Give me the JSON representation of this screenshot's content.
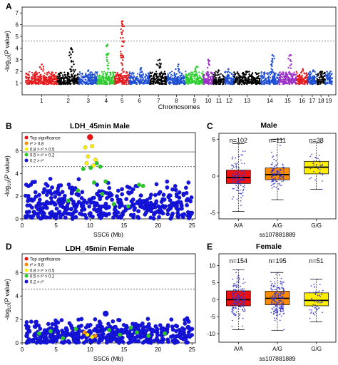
{
  "panels": {
    "A": "A",
    "B": "B",
    "C": "C",
    "D": "D",
    "E": "E"
  },
  "chart_data": [
    {
      "id": "A",
      "type": "scatter",
      "subtype": "manhattan",
      "title": "",
      "xlabel": "Chromosomes",
      "ylabel": "-log10(P value)",
      "ylim": [
        0,
        7.5
      ],
      "yticks": [
        1,
        2,
        3,
        4,
        5,
        6,
        7
      ],
      "chromosomes": [
        "1",
        "2",
        "3",
        "4",
        "5",
        "6",
        "7",
        "8",
        "9",
        "10",
        "11",
        "12",
        "13",
        "14",
        "15",
        "16",
        "17",
        "18",
        "19"
      ],
      "chromosome_labels": [
        "1",
        "2",
        "3",
        "4",
        "5",
        "6",
        "7",
        "8",
        "9",
        "10",
        "11",
        "12",
        "13",
        "14",
        "15",
        "16",
        "17",
        "18",
        "19"
      ],
      "chromosome_colors": [
        "#e41a1c",
        "#000000",
        "#1f4fd1",
        "#2ecc2e",
        "#e41a1c",
        "#1f4fd1",
        "#000000",
        "#1f4fd1",
        "#2ecc2e",
        "#9b30c8",
        "#000000",
        "#1f4fd1",
        "#000000",
        "#1f4fd1",
        "#9b30c8",
        "#e41a1c",
        "#1f4fd1",
        "#000000",
        "#1f4fd1"
      ],
      "chromosome_peaks": [
        2.6,
        4.0,
        2.1,
        4.3,
        6.3,
        2.3,
        3.0,
        2.6,
        2.4,
        3.0,
        2.1,
        2.2,
        2.0,
        3.4,
        3.4,
        2.2,
        2.1,
        2.0,
        1.8
      ],
      "thresholds": [
        {
          "value": 5.9,
          "style": "solid"
        },
        {
          "value": 4.6,
          "style": "dashed"
        }
      ]
    },
    {
      "id": "B",
      "type": "scatter",
      "subtype": "regional",
      "title": "LDH_45min Male",
      "xlabel": "SSC6 (Mb)",
      "ylabel": "-log10(P value)",
      "xlim": [
        0,
        25.5
      ],
      "ylim": [
        0,
        7.6
      ],
      "xticks": [
        0,
        5,
        10,
        15,
        20,
        25
      ],
      "yticks": [
        0,
        2,
        4,
        6
      ],
      "thresholds": [
        {
          "value": 5.9,
          "style": "solid"
        },
        {
          "value": 4.6,
          "style": "dashed"
        }
      ],
      "legend": {
        "placement": "top-left",
        "entries": [
          {
            "label": "Top significance",
            "color": "#ee1111"
          },
          {
            "label": "r² > 0.8",
            "color": "#ff8c00"
          },
          {
            "label": "0.8 > r² > 0.5",
            "color": "#ffee00"
          },
          {
            "label": "0.5 > r² > 0.2",
            "color": "#22cc22"
          },
          {
            "label": "0.2 > r²",
            "color": "#1515dd"
          }
        ]
      },
      "top_snp": {
        "x": 10.0,
        "y": 7.2
      },
      "highlighted": [
        {
          "x": 9.3,
          "y": 6.3,
          "r2": "0.8-0.5"
        },
        {
          "x": 10.3,
          "y": 6.4,
          "r2": "0.8-0.5"
        },
        {
          "x": 9.7,
          "y": 5.5,
          "r2": "0.8-0.5"
        },
        {
          "x": 10.8,
          "y": 5.2,
          "r2": "0.8-0.5"
        },
        {
          "x": 9.5,
          "y": 4.9,
          "r2": "0.8-0.5"
        },
        {
          "x": 10.5,
          "y": 4.7,
          "r2": "0.8-0.5"
        },
        {
          "x": 11.0,
          "y": 4.9,
          "r2": "0.5-0.2"
        },
        {
          "x": 11.5,
          "y": 4.6,
          "r2": "0.5-0.2"
        },
        {
          "x": 10.1,
          "y": 4.5,
          "r2": "0.5-0.2"
        },
        {
          "x": 9.0,
          "y": 4.4,
          "r2": "0.5-0.2"
        },
        {
          "x": 10.6,
          "y": 3.2,
          "r2": "0.5-0.2"
        },
        {
          "x": 8.2,
          "y": 2.5,
          "r2": "0.5-0.2"
        },
        {
          "x": 11.8,
          "y": 2.2,
          "r2": "0.5-0.2"
        },
        {
          "x": 13.5,
          "y": 1.3,
          "r2": "0.5-0.2"
        },
        {
          "x": 17.2,
          "y": 3.0,
          "r2": "0.5-0.2"
        },
        {
          "x": 17.8,
          "y": 2.9,
          "r2": "0.5-0.2"
        },
        {
          "x": 6.8,
          "y": 1.6,
          "r2": "0.5-0.2"
        },
        {
          "x": 12.3,
          "y": 3.3,
          "r2": "0.5-0.2"
        },
        {
          "x": 15.6,
          "y": 1.1,
          "r2": "0.5-0.2"
        }
      ],
      "background_max": 3.6
    },
    {
      "id": "C",
      "type": "box",
      "title": "Male",
      "xlabel": "ss107881889",
      "ylabel": "",
      "ylim": [
        -5.8,
        5.8
      ],
      "yticks": [
        -5,
        0,
        5
      ],
      "groups": [
        {
          "genotype": "A/A",
          "n_label": "n=102",
          "n": 102,
          "color": "#ee1111",
          "q1": -1.0,
          "median": -0.2,
          "q3": 0.8,
          "whisker_low": -4.8,
          "whisker_high": 4.4
        },
        {
          "genotype": "A/G",
          "n_label": "n=111",
          "n": 111,
          "color": "#ff8c00",
          "q1": -0.5,
          "median": 0.2,
          "q3": 1.1,
          "whisker_low": -3.2,
          "whisker_high": 5.0
        },
        {
          "genotype": "G/G",
          "n_label": "n=38",
          "n": 38,
          "color": "#ffee00",
          "q1": 0.3,
          "median": 1.2,
          "q3": 2.0,
          "whisker_low": -1.8,
          "whisker_high": 4.5
        }
      ]
    },
    {
      "id": "D",
      "type": "scatter",
      "subtype": "regional",
      "title": "LDH_45min Female",
      "xlabel": "SSC6 (Mb)",
      "ylabel": "-log10(P value)",
      "xlim": [
        0,
        25.5
      ],
      "ylim": [
        0,
        7.6
      ],
      "xticks": [
        0,
        5,
        10,
        15,
        20,
        25
      ],
      "yticks": [
        0,
        2,
        4,
        6
      ],
      "thresholds": [
        {
          "value": 5.9,
          "style": "solid"
        },
        {
          "value": 4.6,
          "style": "dashed"
        }
      ],
      "legend": {
        "placement": "top-left",
        "entries": [
          {
            "label": "Top significance",
            "color": "#ee1111"
          },
          {
            "label": "r² > 0.8",
            "color": "#ff8c00"
          },
          {
            "label": "0.8 > r² > 0.5",
            "color": "#ffee00"
          },
          {
            "label": "0.5 > r² > 0.2",
            "color": "#22cc22"
          },
          {
            "label": "0.2 > r²",
            "color": "#1515dd"
          }
        ]
      },
      "top_snp": {
        "x": 12.3,
        "y": 2.5
      },
      "highlighted": [
        {
          "x": 9.6,
          "y": 0.7,
          "r2": "0.8-0.5"
        },
        {
          "x": 10.3,
          "y": 0.5,
          "r2": "0.8-0.5"
        },
        {
          "x": 9.2,
          "y": 0.9,
          "r2": ">0.8"
        },
        {
          "x": 10.8,
          "y": 0.6,
          "r2": ">0.8"
        },
        {
          "x": 2.5,
          "y": 0.8,
          "r2": "0.5-0.2"
        },
        {
          "x": 4.2,
          "y": 1.0,
          "r2": "0.5-0.2"
        },
        {
          "x": 7.9,
          "y": 1.2,
          "r2": "0.5-0.2"
        },
        {
          "x": 12.8,
          "y": 1.1,
          "r2": "0.5-0.2"
        },
        {
          "x": 16.0,
          "y": 1.3,
          "r2": "0.5-0.2"
        },
        {
          "x": 16.9,
          "y": 0.9,
          "r2": "0.5-0.2"
        },
        {
          "x": 18.6,
          "y": 0.6,
          "r2": "0.5-0.2"
        },
        {
          "x": 21.0,
          "y": 0.8,
          "r2": "0.5-0.2"
        },
        {
          "x": 6.0,
          "y": 0.4,
          "r2": "0.5-0.2"
        },
        {
          "x": 14.4,
          "y": 0.7,
          "r2": "0.5-0.2"
        }
      ],
      "background_max": 2.2
    },
    {
      "id": "E",
      "type": "box",
      "title": "Female",
      "xlabel": "ss107881889",
      "ylabel": "",
      "ylim": [
        -12.5,
        13.5
      ],
      "yticks": [
        -10,
        -5,
        0,
        5,
        10
      ],
      "groups": [
        {
          "genotype": "A/A",
          "n_label": "n=154",
          "n": 154,
          "color": "#ee1111",
          "q1": -1.8,
          "median": 0.0,
          "q3": 2.6,
          "whisker_low": -8.8,
          "whisker_high": 8.8
        },
        {
          "genotype": "A/G",
          "n_label": "n=195",
          "n": 195,
          "color": "#ff8c00",
          "q1": -1.5,
          "median": 0.4,
          "q3": 2.5,
          "whisker_low": -9.0,
          "whisker_high": 8.0
        },
        {
          "genotype": "G/G",
          "n_label": "n=51",
          "n": 51,
          "color": "#ffee00",
          "q1": -1.8,
          "median": -0.2,
          "q3": 2.0,
          "whisker_low": -6.5,
          "whisker_high": 6.0
        }
      ]
    }
  ]
}
